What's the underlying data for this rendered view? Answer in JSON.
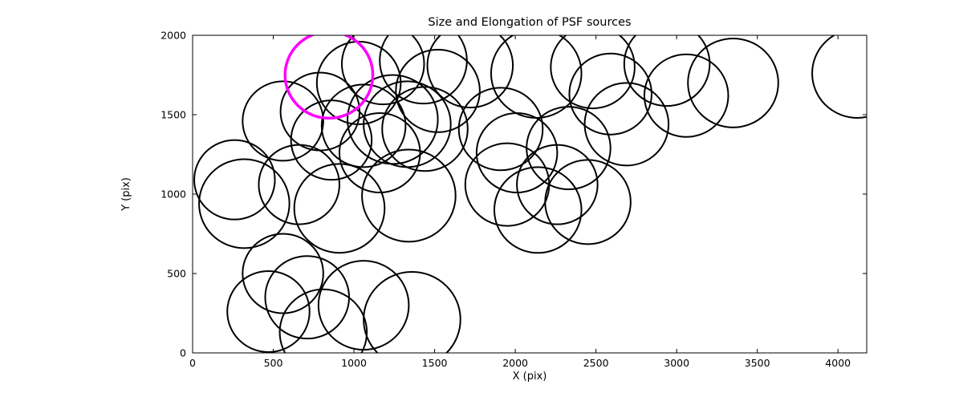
{
  "figure": {
    "title": "Size and Elongation of PSF sources",
    "xlabel": "X (pix)",
    "ylabel": "Y (pix)"
  },
  "chart_data": {
    "type": "scatter",
    "title": "Size and Elongation of PSF sources",
    "xlabel": "X (pix)",
    "ylabel": "Y (pix)",
    "xlim": [
      0,
      4178
    ],
    "ylim": [
      0,
      2000
    ],
    "xticks": [
      0,
      500,
      1000,
      1500,
      2000,
      2500,
      3000,
      3500,
      4000
    ],
    "yticks": [
      0,
      500,
      1000,
      1500,
      2000
    ],
    "grid": false,
    "legend": "none",
    "marker": "open-circle",
    "colors": {
      "source_outline": "#000000",
      "highlight_outline": "#ff00ff",
      "axes": "#000000",
      "background": "#ffffff"
    },
    "line_widths": {
      "source": 2,
      "highlight": 3.5,
      "frame": 1
    },
    "highlighted_source": {
      "x": 845,
      "y": 1750,
      "r": 272
    },
    "sources": [
      {
        "x": 1030,
        "y": 1700,
        "r": 260
      },
      {
        "x": 1180,
        "y": 1820,
        "r": 255
      },
      {
        "x": 1430,
        "y": 1840,
        "r": 270
      },
      {
        "x": 1520,
        "y": 1650,
        "r": 260
      },
      {
        "x": 1720,
        "y": 1810,
        "r": 265
      },
      {
        "x": 2130,
        "y": 1760,
        "r": 280
      },
      {
        "x": 2480,
        "y": 1800,
        "r": 260
      },
      {
        "x": 2590,
        "y": 1630,
        "r": 255
      },
      {
        "x": 2940,
        "y": 1820,
        "r": 265
      },
      {
        "x": 3060,
        "y": 1620,
        "r": 260
      },
      {
        "x": 3350,
        "y": 1700,
        "r": 280
      },
      {
        "x": 4120,
        "y": 1760,
        "r": 280
      },
      {
        "x": 560,
        "y": 1460,
        "r": 250
      },
      {
        "x": 790,
        "y": 1520,
        "r": 245
      },
      {
        "x": 860,
        "y": 1340,
        "r": 250
      },
      {
        "x": 1060,
        "y": 1430,
        "r": 260
      },
      {
        "x": 1240,
        "y": 1470,
        "r": 280
      },
      {
        "x": 1330,
        "y": 1440,
        "r": 270
      },
      {
        "x": 1440,
        "y": 1410,
        "r": 265
      },
      {
        "x": 1160,
        "y": 1260,
        "r": 250
      },
      {
        "x": 1910,
        "y": 1410,
        "r": 260
      },
      {
        "x": 2010,
        "y": 1260,
        "r": 250
      },
      {
        "x": 2330,
        "y": 1290,
        "r": 260
      },
      {
        "x": 2690,
        "y": 1440,
        "r": 260
      },
      {
        "x": 260,
        "y": 1090,
        "r": 250
      },
      {
        "x": 320,
        "y": 940,
        "r": 280
      },
      {
        "x": 660,
        "y": 1060,
        "r": 250
      },
      {
        "x": 910,
        "y": 910,
        "r": 280
      },
      {
        "x": 1340,
        "y": 990,
        "r": 290
      },
      {
        "x": 1950,
        "y": 1060,
        "r": 260
      },
      {
        "x": 2140,
        "y": 900,
        "r": 270
      },
      {
        "x": 2260,
        "y": 1060,
        "r": 250
      },
      {
        "x": 2450,
        "y": 950,
        "r": 265
      },
      {
        "x": 560,
        "y": 500,
        "r": 250
      },
      {
        "x": 470,
        "y": 260,
        "r": 255
      },
      {
        "x": 710,
        "y": 350,
        "r": 260
      },
      {
        "x": 810,
        "y": 130,
        "r": 270
      },
      {
        "x": 1060,
        "y": 300,
        "r": 280
      },
      {
        "x": 1360,
        "y": 210,
        "r": 300
      }
    ]
  }
}
